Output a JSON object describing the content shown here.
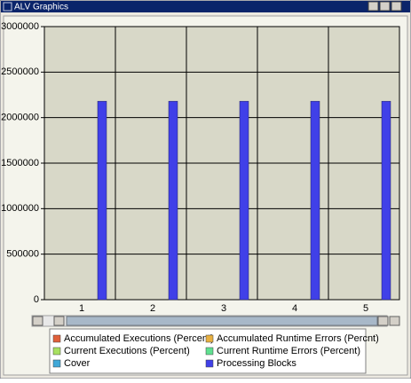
{
  "window": {
    "title": "ALV Graphics"
  },
  "chart_data": {
    "type": "bar",
    "categories": [
      "1",
      "2",
      "3",
      "4",
      "5"
    ],
    "series": [
      {
        "name": "Accumulated Executions (Percent)",
        "color": "#e0603a",
        "values": [
          0,
          0,
          0,
          0,
          0
        ]
      },
      {
        "name": "Accumulated Runtime Errors (Percnt)",
        "color": "#e8b040",
        "values": [
          0,
          0,
          0,
          0,
          0
        ]
      },
      {
        "name": "Current Executions (Percent)",
        "color": "#a8e060",
        "values": [
          0,
          0,
          0,
          0,
          0
        ]
      },
      {
        "name": "Current Runtime Errors (Percent)",
        "color": "#60e090",
        "values": [
          0,
          0,
          0,
          0,
          0
        ]
      },
      {
        "name": "Cover",
        "color": "#40a8d8",
        "values": [
          0,
          0,
          0,
          0,
          0
        ]
      },
      {
        "name": "Processing Blocks",
        "color": "#4040e8",
        "values": [
          2180000,
          2180000,
          2180000,
          2180000,
          2180000
        ]
      }
    ],
    "ylim": [
      0,
      3000000
    ],
    "yticks": [
      0,
      500000,
      1000000,
      1500000,
      2000000,
      2500000,
      3000000
    ],
    "grid": true,
    "legend": "bottom"
  }
}
